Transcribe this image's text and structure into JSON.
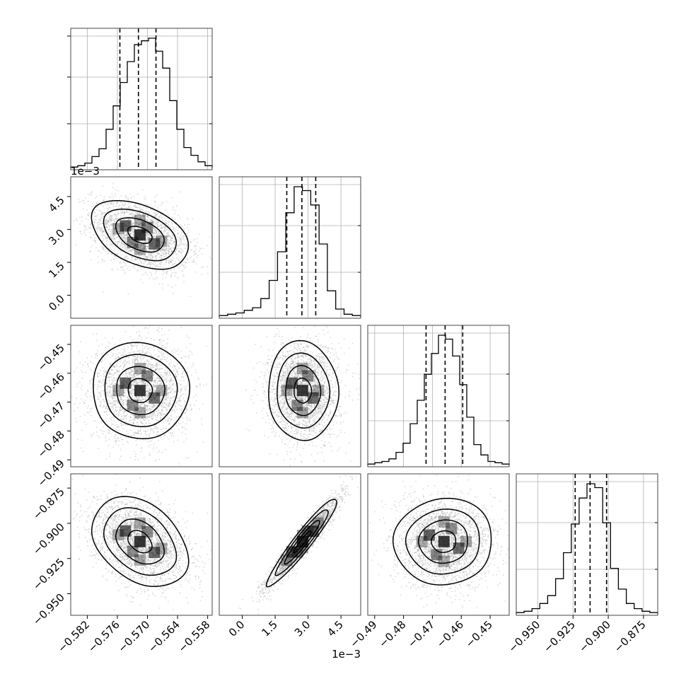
{
  "chart_data": {
    "type": "corner",
    "parameters": [
      {
        "ticks": [
          -0.582,
          -0.576,
          -0.57,
          -0.564,
          -0.558
        ],
        "tick_labels": [
          "−0.582",
          "−0.576",
          "−0.570",
          "−0.564",
          "−0.558"
        ],
        "range": [
          -0.5853,
          -0.5571
        ],
        "quantiles": [
          -0.5755,
          -0.5718,
          -0.5683
        ],
        "peak": -0.5715,
        "offset_label": ""
      },
      {
        "ticks": [
          0.0,
          1.5,
          3.0,
          4.5
        ],
        "tick_labels": [
          "0.0",
          "1.5",
          "3.0",
          "4.5"
        ],
        "range": [
          -1.05,
          5.4
        ],
        "quantiles": [
          2.03,
          2.72,
          3.35
        ],
        "peak": 2.75,
        "offset_label": "1e−3"
      },
      {
        "ticks": [
          -0.49,
          -0.48,
          -0.47,
          -0.46,
          -0.45
        ],
        "tick_labels": [
          "−0.49",
          "−0.48",
          "−0.47",
          "−0.46",
          "−0.45"
        ],
        "range": [
          -0.4924,
          -0.4434
        ],
        "quantiles": [
          -0.4722,
          -0.4656,
          -0.4595
        ],
        "peak": -0.4658,
        "offset_label": ""
      },
      {
        "ticks": [
          -0.95,
          -0.925,
          -0.9,
          -0.875
        ],
        "tick_labels": [
          "−0.950",
          "−0.925",
          "−0.900",
          "−0.875"
        ],
        "range": [
          -0.9653,
          -0.8649
        ],
        "quantiles": [
          -0.9235,
          -0.9129,
          -0.9012
        ],
        "peak": -0.914,
        "offset_label": ""
      }
    ],
    "histograms": [
      [
        0.01,
        0.02,
        0.04,
        0.09,
        0.15,
        0.3,
        0.48,
        0.66,
        0.82,
        0.95,
        0.98,
        1.0,
        0.9,
        0.77,
        0.52,
        0.3,
        0.16,
        0.1,
        0.05,
        0.02
      ],
      [
        0.01,
        0.02,
        0.03,
        0.05,
        0.07,
        0.14,
        0.28,
        0.5,
        0.8,
        1.0,
        0.97,
        0.86,
        0.56,
        0.2,
        0.06,
        0.02,
        0.01
      ],
      [
        0.01,
        0.02,
        0.03,
        0.05,
        0.1,
        0.17,
        0.32,
        0.5,
        0.7,
        0.86,
        1.0,
        0.97,
        0.84,
        0.62,
        0.37,
        0.16,
        0.08,
        0.03,
        0.02,
        0.01
      ],
      [
        0.01,
        0.02,
        0.04,
        0.08,
        0.14,
        0.27,
        0.47,
        0.69,
        0.89,
        1.0,
        0.97,
        0.7,
        0.35,
        0.19,
        0.08,
        0.04,
        0.02,
        0.01
      ]
    ],
    "pairs": [
      {
        "x": 0,
        "y": 1,
        "center": [
          -0.5715,
          2.75
        ],
        "sigma": [
          0.0048,
          0.8
        ],
        "rho": -0.4
      },
      {
        "x": 0,
        "y": 2,
        "center": [
          -0.5715,
          -0.466
        ],
        "sigma": [
          0.0048,
          0.0085
        ],
        "rho": 0.0
      },
      {
        "x": 1,
        "y": 2,
        "center": [
          2.75,
          -0.466
        ],
        "sigma": [
          0.8,
          0.0085
        ],
        "rho": 0.0
      },
      {
        "x": 0,
        "y": 3,
        "center": [
          -0.5715,
          -0.913
        ],
        "sigma": [
          0.0048,
          0.0155
        ],
        "rho": -0.35
      },
      {
        "x": 1,
        "y": 3,
        "center": [
          2.75,
          -0.913
        ],
        "sigma": [
          0.8,
          0.0155
        ],
        "rho": 0.95
      },
      {
        "x": 2,
        "y": 3,
        "center": [
          -0.466,
          -0.913
        ],
        "sigma": [
          0.0085,
          0.0155
        ],
        "rho": 0.0
      }
    ],
    "contour_levels_sigma": [
      0.5,
      1.0,
      1.5,
      2.0
    ],
    "grid": true,
    "colors": {
      "line": "#000000",
      "grid": "#b0b0b0",
      "points": "#9a9a9a",
      "frame": "#444444"
    }
  }
}
